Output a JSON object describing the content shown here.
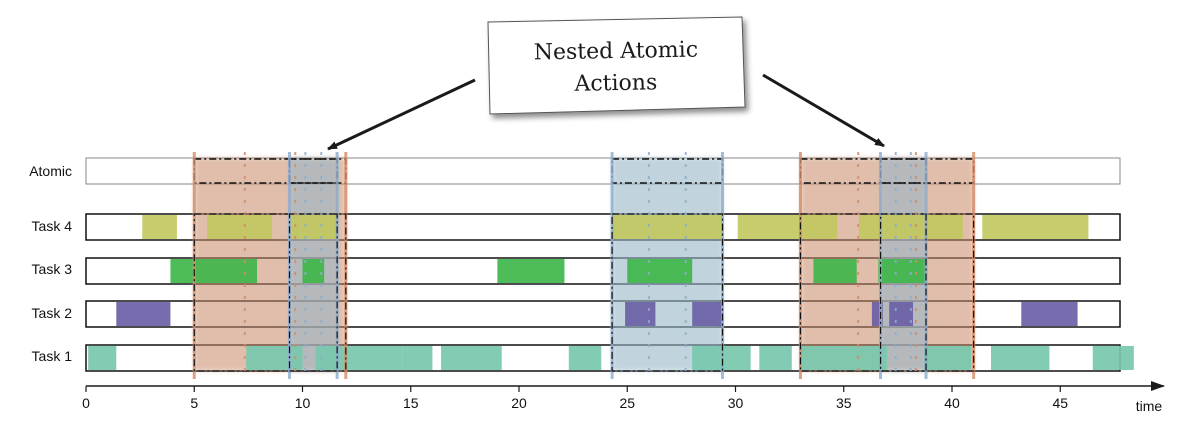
{
  "callout": {
    "line1": "Nested Atomic",
    "line2": "Actions"
  },
  "rows": [
    {
      "id": "atomic",
      "label": "Atomic"
    },
    {
      "id": "task4",
      "label": "Task 4"
    },
    {
      "id": "task3",
      "label": "Task 3"
    },
    {
      "id": "task2",
      "label": "Task 2"
    },
    {
      "id": "task1",
      "label": "Task 1"
    }
  ],
  "axis": {
    "label": "time",
    "min": 0,
    "max": 48.5,
    "ticks": [
      0,
      5,
      10,
      15,
      20,
      25,
      30,
      35,
      40,
      45
    ]
  },
  "colors": {
    "task4": "#c2c85f",
    "task3": "#3fb64a",
    "task2": "#6b5fa6",
    "task1": "#77c8ad",
    "outer_atomic": "#c98a6a",
    "inner_atomic": "#98b6c8",
    "outline": "#000000"
  },
  "intervals": {
    "task4": [
      [
        2.6,
        4.2
      ],
      [
        5.6,
        8.6
      ],
      [
        9.4,
        11.6
      ],
      [
        24.3,
        29.4
      ],
      [
        30.1,
        34.7
      ],
      [
        35.7,
        40.5
      ],
      [
        41.4,
        46.3
      ]
    ],
    "task3": [
      [
        3.9,
        5.0
      ],
      [
        5.0,
        7.9
      ],
      [
        10.0,
        11.0
      ],
      [
        19.0,
        22.1
      ],
      [
        25.0,
        28.0
      ],
      [
        33.6,
        35.6
      ],
      [
        36.6,
        38.8
      ]
    ],
    "task2": [
      [
        1.4,
        3.9
      ],
      [
        24.9,
        26.3
      ],
      [
        28.0,
        29.4
      ],
      [
        36.3,
        36.8
      ],
      [
        37.1,
        38.2
      ],
      [
        43.2,
        45.8
      ]
    ],
    "task1": [
      [
        0.1,
        1.4
      ],
      [
        7.4,
        10.0
      ],
      [
        10.6,
        12.0
      ],
      [
        12.0,
        14.6
      ],
      [
        14.6,
        16.0
      ],
      [
        16.4,
        19.2
      ],
      [
        22.3,
        23.8
      ],
      [
        28.0,
        30.7
      ],
      [
        31.1,
        32.6
      ],
      [
        33.0,
        37.0
      ],
      [
        38.7,
        40.9
      ],
      [
        41.8,
        44.5
      ],
      [
        46.5,
        48.4
      ]
    ]
  },
  "atomic_actions": [
    {
      "level": "outer",
      "start": 5.0,
      "end": 12.0
    },
    {
      "level": "inner",
      "start": 9.4,
      "end": 11.6
    },
    {
      "level": "inner",
      "start": 24.3,
      "end": 29.4
    },
    {
      "level": "outer",
      "start": 33.0,
      "end": 41.0
    },
    {
      "level": "inner",
      "start": 36.7,
      "end": 38.8
    }
  ]
}
